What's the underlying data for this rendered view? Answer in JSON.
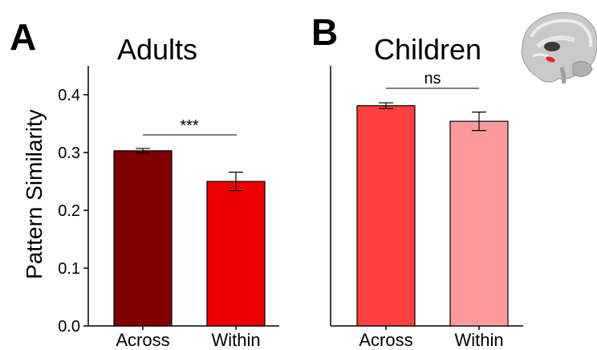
{
  "chart_data": [
    {
      "type": "bar",
      "panel_label": "A",
      "title": "Adults",
      "ylabel": "Pattern Similarity",
      "ylim": [
        0,
        0.45
      ],
      "yticks": [
        "0.0",
        "0.1",
        "0.2",
        "0.3",
        "0.4"
      ],
      "categories": [
        "Across",
        "Within"
      ],
      "values": [
        0.303,
        0.25
      ],
      "errors": [
        0.004,
        0.016
      ],
      "colors": [
        "#800000",
        "#ee0000"
      ],
      "significance": "***"
    },
    {
      "type": "bar",
      "panel_label": "B",
      "title": "Children",
      "ylim": [
        0,
        0.45
      ],
      "categories": [
        "Across",
        "Within"
      ],
      "values": [
        0.381,
        0.354
      ],
      "errors": [
        0.005,
        0.016
      ],
      "colors": [
        "#ff4040",
        "#ff9a9a"
      ],
      "significance": "ns"
    }
  ],
  "inset": {
    "icon": "brain-sagittal-icon",
    "highlight_color": "#ee1c24"
  }
}
